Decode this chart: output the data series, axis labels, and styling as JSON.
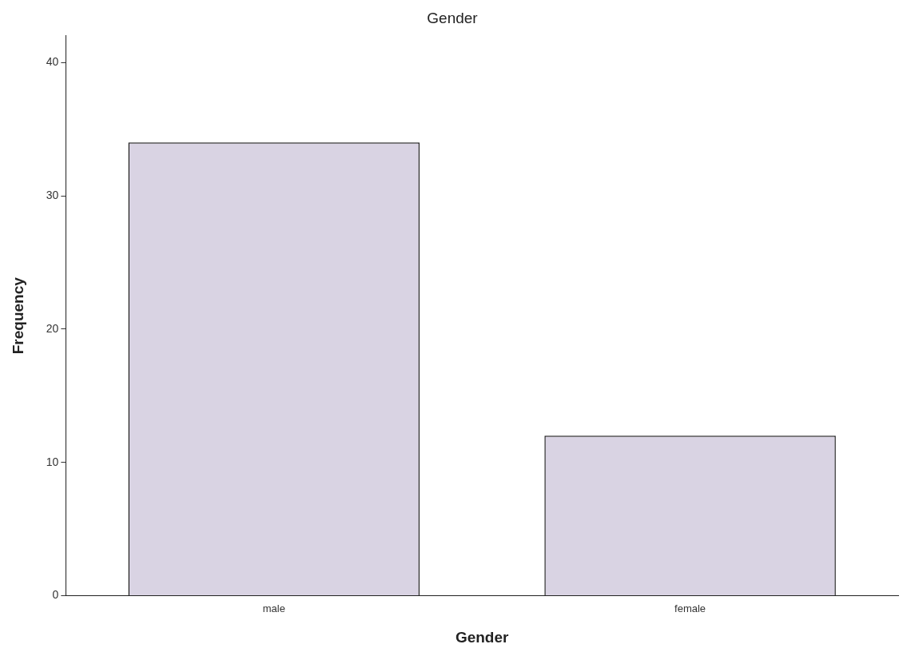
{
  "chart_data": {
    "type": "bar",
    "title": "Gender",
    "xlabel": "Gender",
    "ylabel": "Frequency",
    "categories": [
      "male",
      "female"
    ],
    "values": [
      34,
      12
    ],
    "color": "#d9d3e3",
    "ylim": [
      0,
      42
    ],
    "yticks": [
      0,
      10,
      20,
      30,
      40
    ],
    "grid": false,
    "legend": false
  }
}
